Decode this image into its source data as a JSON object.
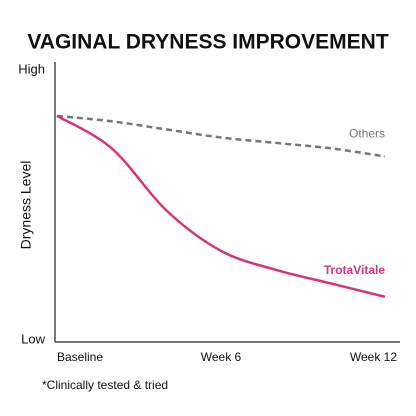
{
  "chart_data": {
    "type": "line",
    "title": "VAGINAL DRYNESS IMPROVEMENT",
    "y_label": "Dryness Level",
    "footnote": "*Clinically tested & tried",
    "x": [
      0,
      2,
      4,
      6,
      8,
      10,
      12
    ],
    "xlim": [
      0,
      12
    ],
    "xticks": [
      {
        "value": 0,
        "label": "Baseline"
      },
      {
        "value": 6,
        "label": "Week 6"
      },
      {
        "value": 12,
        "label": "Week 12"
      }
    ],
    "ylim": [
      0,
      100
    ],
    "yticks": [
      {
        "value": 0,
        "label": "Low"
      },
      {
        "value": 100,
        "label": "High"
      }
    ],
    "series": [
      {
        "name": "Others",
        "color": "#777777",
        "dashed": true,
        "values": [
          83,
          81,
          78,
          75,
          73,
          71,
          68
        ]
      },
      {
        "name": "TrotaVitale",
        "color": "#d6337a",
        "dashed": false,
        "values": [
          83,
          71,
          48,
          33,
          26,
          21,
          16
        ]
      }
    ]
  }
}
